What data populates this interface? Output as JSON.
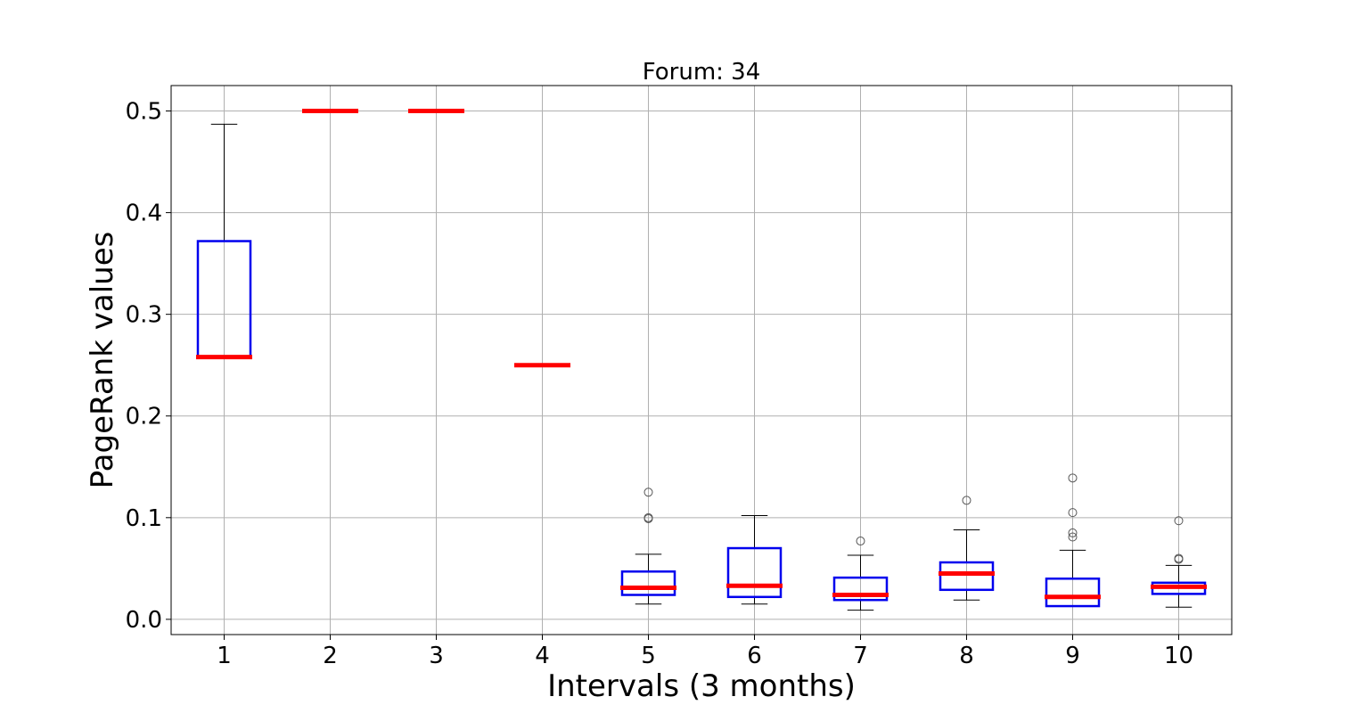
{
  "chart_data": {
    "type": "boxplot",
    "title": "Forum: 34",
    "xlabel": "Intervals (3 months)",
    "ylabel": "PageRank values",
    "ylim": [
      -0.015,
      0.525
    ],
    "yticks": [
      0.0,
      0.1,
      0.2,
      0.3,
      0.4,
      0.5
    ],
    "ytick_labels": [
      "0.0",
      "0.1",
      "0.2",
      "0.3",
      "0.4",
      "0.5"
    ],
    "grid": true,
    "colors": {
      "box": "#0000ee",
      "median": "#ff0000",
      "whisker": "#000000",
      "outlier": "#555555",
      "grid": "#b0b0b0"
    },
    "categories": [
      "1",
      "2",
      "3",
      "4",
      "5",
      "6",
      "7",
      "8",
      "9",
      "10"
    ],
    "boxes": [
      {
        "q1": 0.258,
        "median": 0.258,
        "q3": 0.372,
        "whislo": 0.258,
        "whishi": 0.487,
        "fliers": []
      },
      {
        "q1": 0.5,
        "median": 0.5,
        "q3": 0.5,
        "whislo": 0.5,
        "whishi": 0.5,
        "fliers": []
      },
      {
        "q1": 0.5,
        "median": 0.5,
        "q3": 0.5,
        "whislo": 0.5,
        "whishi": 0.5,
        "fliers": []
      },
      {
        "q1": 0.25,
        "median": 0.25,
        "q3": 0.25,
        "whislo": 0.25,
        "whishi": 0.25,
        "fliers": []
      },
      {
        "q1": 0.024,
        "median": 0.031,
        "q3": 0.047,
        "whislo": 0.015,
        "whishi": 0.064,
        "fliers": [
          0.099,
          0.1,
          0.125
        ]
      },
      {
        "q1": 0.022,
        "median": 0.033,
        "q3": 0.07,
        "whislo": 0.015,
        "whishi": 0.102,
        "fliers": []
      },
      {
        "q1": 0.019,
        "median": 0.024,
        "q3": 0.041,
        "whislo": 0.009,
        "whishi": 0.063,
        "fliers": [
          0.077
        ]
      },
      {
        "q1": 0.029,
        "median": 0.045,
        "q3": 0.056,
        "whislo": 0.019,
        "whishi": 0.088,
        "fliers": [
          0.117
        ]
      },
      {
        "q1": 0.013,
        "median": 0.022,
        "q3": 0.04,
        "whislo": 0.013,
        "whishi": 0.068,
        "fliers": [
          0.081,
          0.085,
          0.105,
          0.139
        ]
      },
      {
        "q1": 0.025,
        "median": 0.032,
        "q3": 0.036,
        "whislo": 0.012,
        "whishi": 0.053,
        "fliers": [
          0.059,
          0.06,
          0.097
        ]
      }
    ]
  }
}
